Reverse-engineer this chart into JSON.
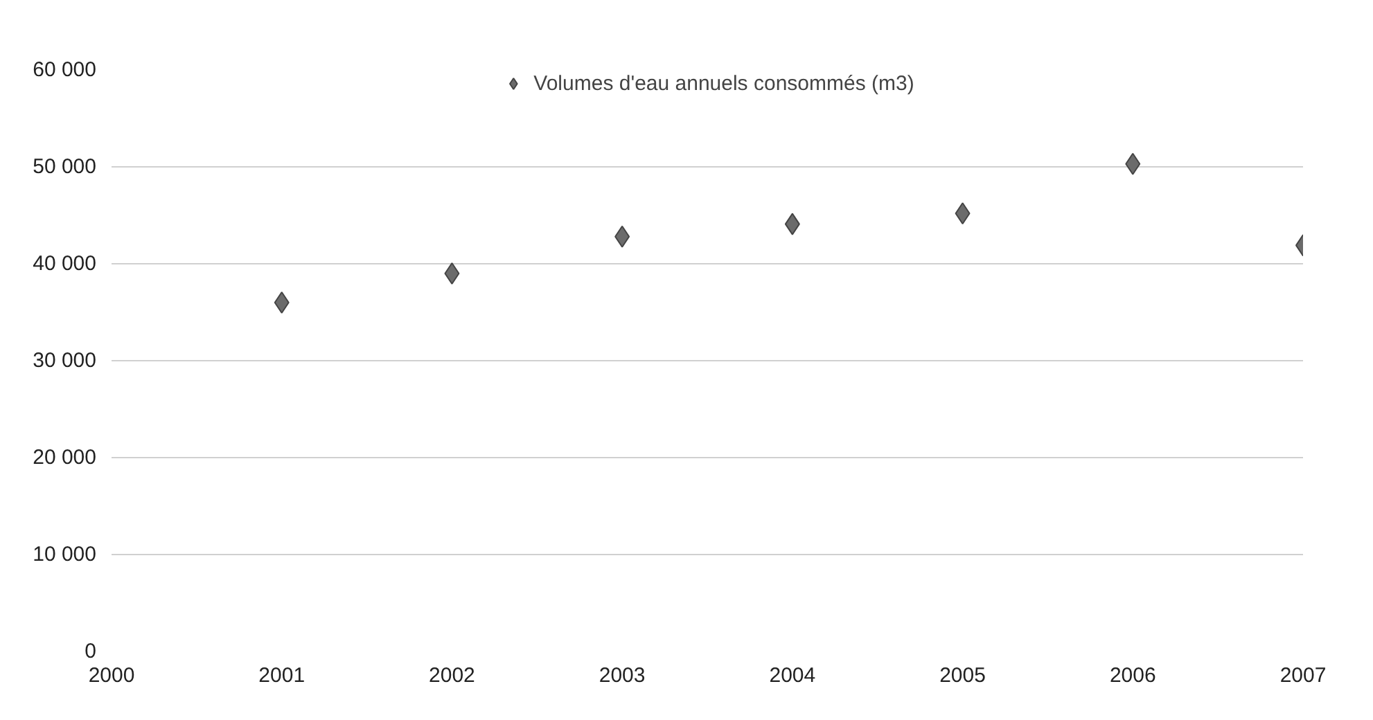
{
  "chart_data": {
    "type": "scatter",
    "x": [
      2001,
      2002,
      2003,
      2004,
      2005,
      2006,
      2007
    ],
    "series": [
      {
        "name": "Volumes d'eau annuels consommés (m3)",
        "color": "#6b6b6b",
        "values": [
          36000,
          39000,
          42800,
          44100,
          45200,
          50300,
          41900
        ]
      }
    ],
    "xlim": [
      2000,
      2007
    ],
    "xticks": [
      2000,
      2001,
      2002,
      2003,
      2004,
      2005,
      2006,
      2007
    ],
    "ylim": [
      0,
      60000
    ],
    "yticks": [
      {
        "value": 0,
        "label": "0"
      },
      {
        "value": 10000,
        "label": "10 000"
      },
      {
        "value": 20000,
        "label": "20 000"
      },
      {
        "value": 30000,
        "label": "30 000"
      },
      {
        "value": 40000,
        "label": "40 000"
      },
      {
        "value": 50000,
        "label": "50 000"
      },
      {
        "value": 60000,
        "label": "60 000"
      }
    ],
    "grid": "y",
    "legend": "top",
    "marker": "diamond"
  }
}
